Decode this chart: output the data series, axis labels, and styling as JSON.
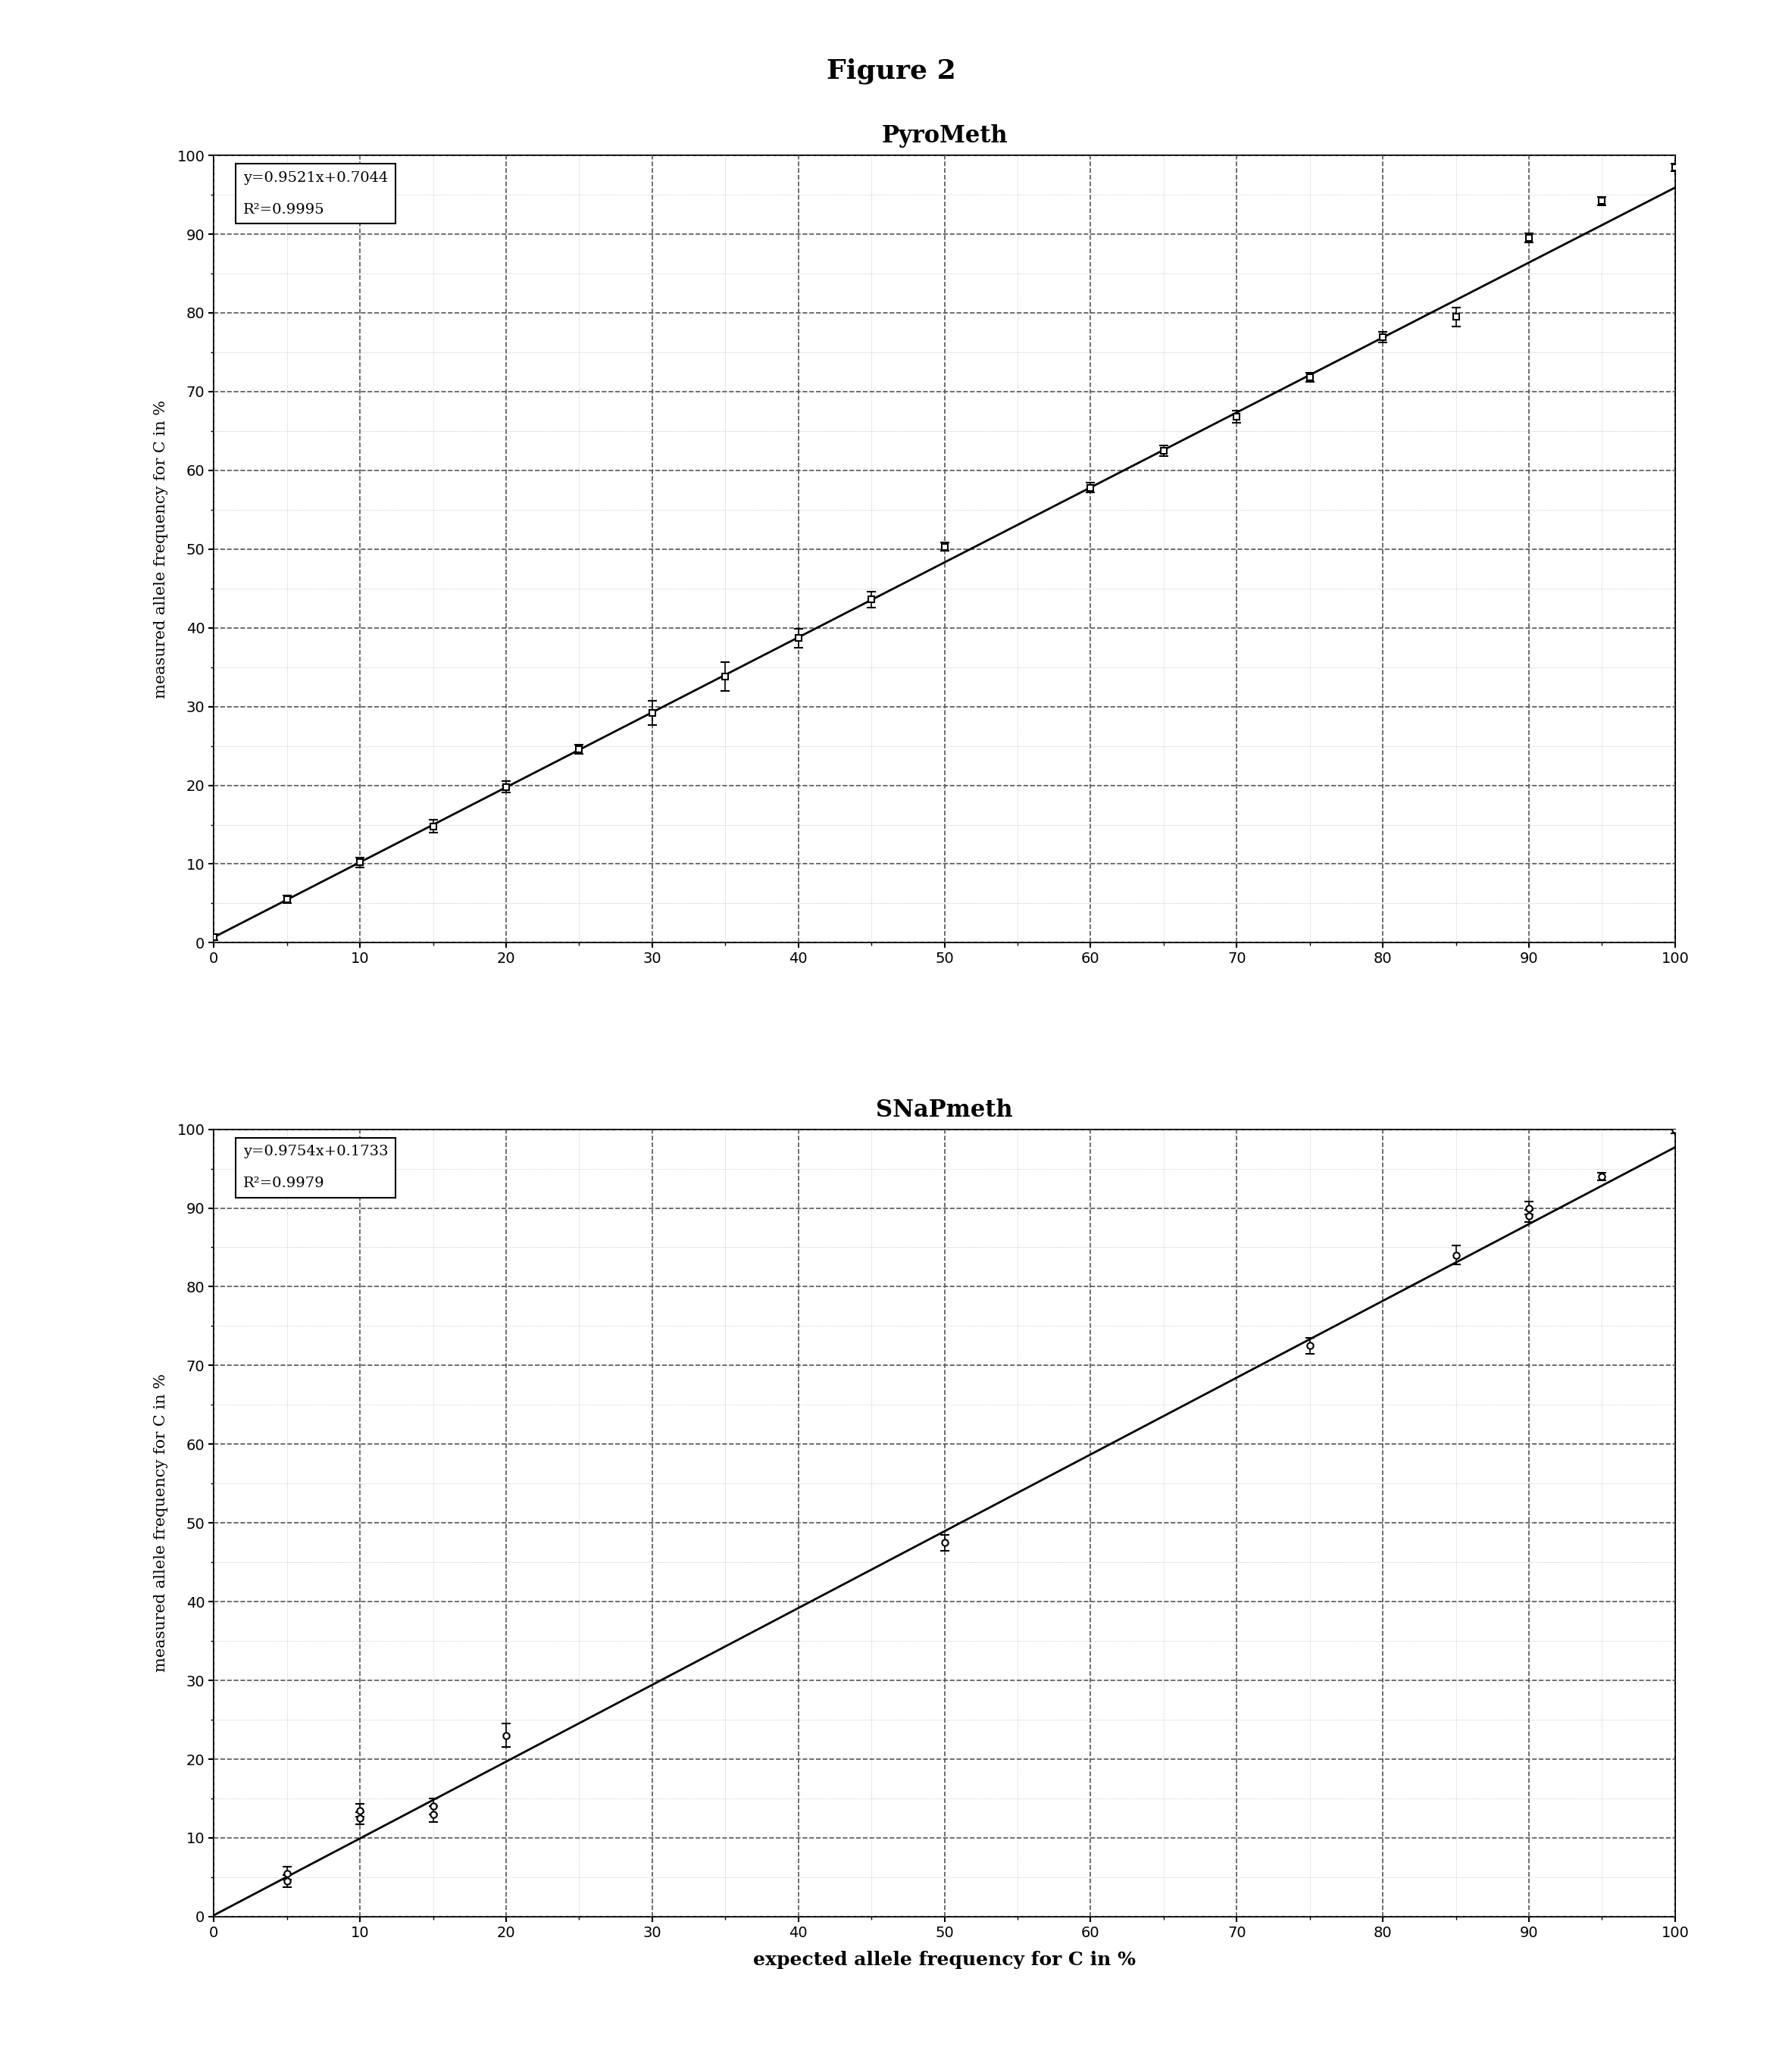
{
  "figure_title": "Figure 2",
  "figure_title_fontsize": 26,
  "figure_title_fontweight": "bold",
  "plot1": {
    "title": "PyroMeth",
    "title_fontsize": 22,
    "xlabel": "",
    "ylabel": "measured allele frequency for C in %",
    "ylabel_fontsize": 15,
    "xlim": [
      0,
      100
    ],
    "ylim": [
      0,
      100
    ],
    "xticks": [
      0,
      10,
      20,
      30,
      40,
      50,
      60,
      70,
      80,
      90,
      100
    ],
    "yticks": [
      0,
      10,
      20,
      30,
      40,
      50,
      60,
      70,
      80,
      90,
      100
    ],
    "equation": "y=0.9521x+0.7044",
    "r2": "R²=0.9995",
    "slope": 0.9521,
    "intercept": 0.7044,
    "x_data": [
      0,
      5,
      10,
      15,
      20,
      25,
      30,
      35,
      40,
      45,
      50,
      60,
      65,
      70,
      75,
      80,
      85,
      90,
      95,
      100
    ],
    "y_data": [
      0.7,
      5.5,
      10.2,
      14.8,
      19.8,
      24.6,
      29.2,
      33.8,
      38.7,
      43.6,
      50.3,
      57.8,
      62.5,
      66.8,
      71.8,
      76.9,
      79.5,
      89.5,
      94.2,
      98.5
    ],
    "y_err": [
      0.4,
      0.5,
      0.6,
      0.8,
      0.7,
      0.6,
      1.5,
      1.8,
      1.2,
      1.0,
      0.5,
      0.6,
      0.7,
      0.8,
      0.6,
      0.7,
      1.2,
      0.6,
      0.5,
      0.5
    ],
    "marker": "s",
    "markersize": 6,
    "linecolor": "#000000",
    "markercolor": "#000000",
    "markerface": "white"
  },
  "plot2": {
    "title": "SNaPmeth",
    "title_fontsize": 22,
    "xlabel": "expected allele frequency for C in %",
    "ylabel": "measured allele frequency for C in %",
    "xlabel_fontsize": 18,
    "ylabel_fontsize": 15,
    "xlim": [
      0,
      100
    ],
    "ylim": [
      0,
      100
    ],
    "xticks": [
      0,
      10,
      20,
      30,
      40,
      50,
      60,
      70,
      80,
      90,
      100
    ],
    "yticks": [
      0,
      10,
      20,
      30,
      40,
      50,
      60,
      70,
      80,
      90,
      100
    ],
    "equation": "y=0.9754x+0.1733",
    "r2": "R²=0.9979",
    "slope": 0.9754,
    "intercept": 0.1733,
    "x_data": [
      5,
      5,
      10,
      10,
      15,
      15,
      20,
      50,
      75,
      85,
      90,
      90,
      95,
      100
    ],
    "y_data": [
      5.5,
      4.5,
      12.5,
      13.5,
      13.0,
      14.0,
      23.0,
      47.5,
      72.5,
      84.0,
      89.0,
      90.0,
      94.0,
      100.0
    ],
    "y_err": [
      0.8,
      0.8,
      0.8,
      0.8,
      1.0,
      1.0,
      1.5,
      1.0,
      1.0,
      1.2,
      0.8,
      0.8,
      0.5,
      0.5
    ],
    "marker": "o",
    "markersize": 6,
    "linecolor": "#000000",
    "markercolor": "#000000",
    "markerface": "white"
  },
  "background_color": "#ffffff",
  "major_grid_color": "#555555",
  "major_grid_linestyle": "--",
  "major_grid_linewidth": 1.2,
  "minor_grid_color": "#aaaaaa",
  "minor_grid_linestyle": ":",
  "minor_grid_linewidth": 0.5,
  "tick_fontsize": 14
}
